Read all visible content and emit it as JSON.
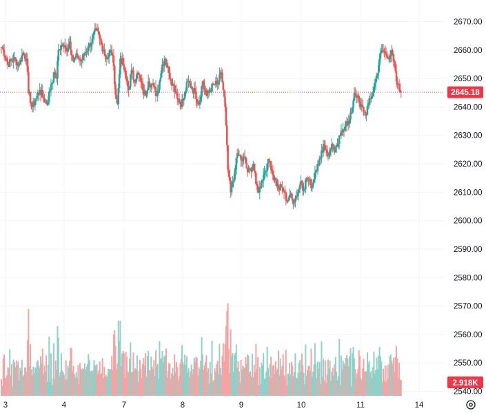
{
  "chart_data": {
    "type": "candlestick",
    "price_axis": {
      "ticks": [
        "2540.00",
        "2550.00",
        "2560.00",
        "2570.00",
        "2580.00",
        "2590.00",
        "2600.00",
        "2610.00",
        "2620.00",
        "2630.00",
        "2640.00",
        "2650.00",
        "2660.00",
        "2670.00"
      ],
      "range": [
        2536,
        2674
      ]
    },
    "time_axis": {
      "ticks": [
        "3",
        "4",
        "7",
        "8",
        "9",
        "10",
        "11",
        "14"
      ]
    },
    "last_price": {
      "label": "2645.18",
      "value": 2645.18
    },
    "volume_label": "2.918K",
    "colors": {
      "up": "#26a69a",
      "down": "#ef5350",
      "up_volume": "#8fd0c8",
      "down_volume": "#f5a3a3",
      "grid": "#f0f3fa",
      "price_tag": "#f23645",
      "volume_tag": "#f23645"
    },
    "grid": true,
    "segments": [
      {
        "start": 2661,
        "points": [
          [
            2,
            2661
          ],
          [
            8,
            2655
          ],
          [
            14,
            2657
          ],
          [
            20,
            2655
          ],
          [
            24,
            2659
          ],
          [
            28,
            2657
          ],
          [
            30,
            2645
          ],
          [
            34,
            2640
          ],
          [
            38,
            2643
          ],
          [
            42,
            2646
          ],
          [
            46,
            2643
          ],
          [
            50,
            2641
          ],
          [
            54,
            2648
          ],
          [
            58,
            2652
          ],
          [
            60,
            2650
          ]
        ]
      },
      {
        "start": 2650,
        "points": [
          [
            2,
            2660
          ],
          [
            6,
            2662
          ],
          [
            10,
            2660
          ],
          [
            14,
            2663
          ],
          [
            18,
            2656
          ],
          [
            22,
            2658
          ],
          [
            26,
            2656
          ],
          [
            30,
            2659
          ],
          [
            34,
            2661
          ],
          [
            38,
            2664
          ],
          [
            42,
            2667
          ],
          [
            46,
            2664
          ],
          [
            50,
            2660
          ],
          [
            54,
            2657
          ],
          [
            58,
            2660
          ],
          [
            60,
            2658
          ]
        ]
      },
      {
        "start": 2658,
        "points": [
          [
            2,
            2648
          ],
          [
            5,
            2641
          ],
          [
            8,
            2657
          ],
          [
            11,
            2655
          ],
          [
            14,
            2650
          ],
          [
            17,
            2646
          ],
          [
            20,
            2653
          ],
          [
            23,
            2649
          ],
          [
            26,
            2652
          ],
          [
            29,
            2650
          ],
          [
            32,
            2646
          ],
          [
            35,
            2644
          ],
          [
            38,
            2649
          ],
          [
            41,
            2648
          ],
          [
            44,
            2647
          ],
          [
            47,
            2644
          ],
          [
            50,
            2649
          ],
          [
            53,
            2655
          ],
          [
            56,
            2657
          ],
          [
            60,
            2652
          ]
        ]
      },
      {
        "start": 2652,
        "points": [
          [
            4,
            2648
          ],
          [
            8,
            2645
          ],
          [
            12,
            2641
          ],
          [
            16,
            2643
          ],
          [
            20,
            2649
          ],
          [
            24,
            2647
          ],
          [
            28,
            2645
          ],
          [
            32,
            2641
          ],
          [
            36,
            2649
          ],
          [
            40,
            2644
          ],
          [
            44,
            2646
          ],
          [
            48,
            2648
          ],
          [
            52,
            2648
          ],
          [
            56,
            2652
          ],
          [
            60,
            2640
          ]
        ]
      },
      {
        "start": 2640,
        "points": [
          [
            3,
            2618
          ],
          [
            6,
            2610
          ],
          [
            9,
            2614
          ],
          [
            12,
            2622
          ],
          [
            15,
            2623
          ],
          [
            18,
            2621
          ],
          [
            21,
            2622
          ],
          [
            24,
            2617
          ],
          [
            27,
            2618
          ],
          [
            30,
            2620
          ],
          [
            33,
            2613
          ],
          [
            36,
            2610
          ],
          [
            39,
            2614
          ],
          [
            42,
            2617
          ],
          [
            45,
            2620
          ],
          [
            48,
            2621
          ],
          [
            51,
            2616
          ],
          [
            54,
            2614
          ],
          [
            57,
            2611
          ],
          [
            60,
            2612
          ]
        ]
      },
      {
        "start": 2612,
        "points": [
          [
            3,
            2610
          ],
          [
            6,
            2607
          ],
          [
            9,
            2609
          ],
          [
            12,
            2607
          ],
          [
            15,
            2608
          ],
          [
            18,
            2610
          ],
          [
            21,
            2614
          ],
          [
            24,
            2611
          ],
          [
            27,
            2615
          ],
          [
            30,
            2614
          ],
          [
            33,
            2612
          ],
          [
            36,
            2617
          ],
          [
            39,
            2620
          ],
          [
            42,
            2622
          ],
          [
            45,
            2627
          ],
          [
            48,
            2625
          ],
          [
            51,
            2623
          ],
          [
            54,
            2627
          ],
          [
            57,
            2624
          ],
          [
            60,
            2626
          ]
        ]
      },
      {
        "start": 2626,
        "points": [
          [
            3,
            2630
          ],
          [
            6,
            2632
          ],
          [
            9,
            2635
          ],
          [
            12,
            2634
          ],
          [
            15,
            2638
          ],
          [
            18,
            2645
          ],
          [
            21,
            2644
          ],
          [
            24,
            2640
          ],
          [
            27,
            2640
          ],
          [
            30,
            2637
          ],
          [
            33,
            2641
          ],
          [
            36,
            2643
          ],
          [
            39,
            2647
          ],
          [
            42,
            2651
          ],
          [
            45,
            2657
          ],
          [
            48,
            2660
          ],
          [
            51,
            2659
          ],
          [
            54,
            2657
          ],
          [
            57,
            2660
          ],
          [
            60,
            2656
          ]
        ]
      },
      {
        "start": 2656,
        "points": [
          [
            3,
            2649
          ],
          [
            6,
            2646
          ],
          [
            8,
            2645.18
          ]
        ]
      }
    ],
    "volume_scale": 3.2
  }
}
